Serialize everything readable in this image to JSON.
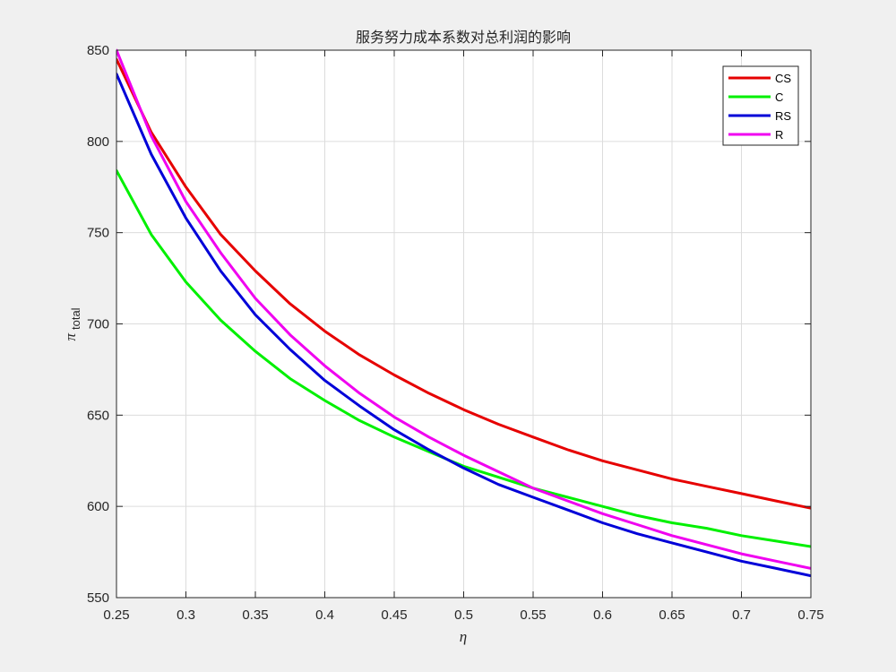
{
  "chart_data": {
    "type": "line",
    "title": "服务努力成本系数对总利润的影响",
    "xlabel": "η",
    "ylabel": {
      "main": "π",
      "subscript": "total"
    },
    "xlim": [
      0.25,
      0.75
    ],
    "ylim": [
      550,
      850
    ],
    "xticks": [
      0.25,
      0.3,
      0.35,
      0.4,
      0.45,
      0.5,
      0.55,
      0.6,
      0.65,
      0.7,
      0.75
    ],
    "yticks": [
      550,
      600,
      650,
      700,
      750,
      800,
      850
    ],
    "grid": true,
    "legend_position": "top-right",
    "x": [
      0.25,
      0.275,
      0.3,
      0.325,
      0.35,
      0.375,
      0.4,
      0.425,
      0.45,
      0.475,
      0.5,
      0.525,
      0.55,
      0.575,
      0.6,
      0.625,
      0.65,
      0.675,
      0.7,
      0.725,
      0.75
    ],
    "series": [
      {
        "name": "CS",
        "color": "#e60000",
        "values": [
          845,
          805,
          775,
          749,
          729,
          711,
          696,
          683,
          672,
          662,
          653,
          645,
          638,
          631,
          625,
          620,
          615,
          611,
          607,
          603,
          599
        ]
      },
      {
        "name": "C",
        "color": "#00f000",
        "values": [
          784,
          749,
          723,
          702,
          685,
          670,
          658,
          647,
          638,
          630,
          622,
          616,
          610,
          605,
          600,
          595,
          591,
          588,
          584,
          581,
          578
        ]
      },
      {
        "name": "RS",
        "color": "#0000d8",
        "values": [
          837,
          793,
          758,
          729,
          705,
          686,
          669,
          655,
          642,
          631,
          621,
          612,
          605,
          598,
          591,
          585,
          580,
          575,
          570,
          566,
          562
        ]
      },
      {
        "name": "R",
        "color": "#f000f0",
        "values": [
          850,
          803,
          767,
          739,
          714,
          694,
          677,
          662,
          649,
          638,
          628,
          619,
          610,
          603,
          596,
          590,
          584,
          579,
          574,
          570,
          566
        ]
      }
    ]
  }
}
